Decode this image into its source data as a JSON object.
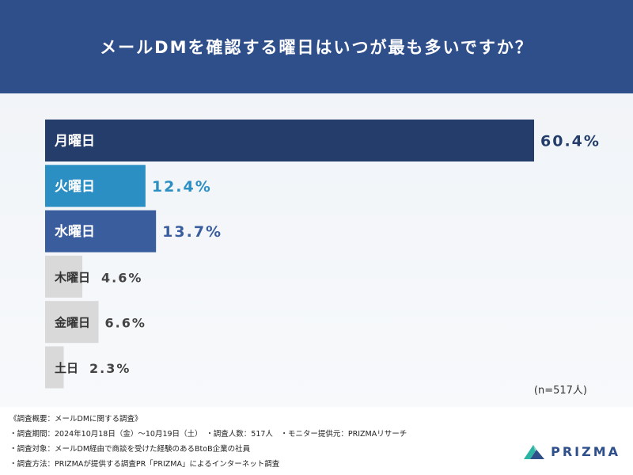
{
  "title": "メールDMを確認する曜日はいつが最も多いですか？",
  "sample_size": "(n=517人)",
  "notes": {
    "heading": "《調査概要：メールDMに関する調査》",
    "period": "・調査期間：2024年10月18日（金）〜10月19日（土）　・調査人数：517人　・モニター提供元：PRIZMAリサーチ",
    "target": "・調査対象：メールDM経由で商談を受けた経験のあるBtoB企業の社員",
    "method": "・調査方法：PRIZMAが提供する調査PR「PRIZMA」によるインターネット調査"
  },
  "logo": {
    "text": "PRIZMA",
    "icon": "prizma-mountain-icon"
  },
  "chart_data": {
    "type": "bar",
    "orientation": "horizontal",
    "categories": [
      "月曜日",
      "火曜日",
      "水曜日",
      "木曜日",
      "金曜日",
      "土日"
    ],
    "values": [
      60.4,
      12.4,
      13.7,
      4.6,
      6.6,
      2.3
    ],
    "labels": [
      "60.4%",
      "12.4%",
      "13.7%",
      "4.6%",
      "6.6%",
      "2.3%"
    ],
    "unit": "%",
    "xlim": [
      0,
      60.4
    ],
    "bar_colors": [
      "#243d6b",
      "#2b8fc4",
      "#3a5d9e",
      "#d9d9d9",
      "#d9d9d9",
      "#d9d9d9"
    ],
    "label_colors": [
      "#243d6b",
      "#2b8fc4",
      "#3a5d9e",
      "#444444",
      "#444444",
      "#444444"
    ],
    "category_text_colors": [
      "#ffffff",
      "#ffffff",
      "#ffffff",
      "#333333",
      "#333333",
      "#333333"
    ]
  }
}
